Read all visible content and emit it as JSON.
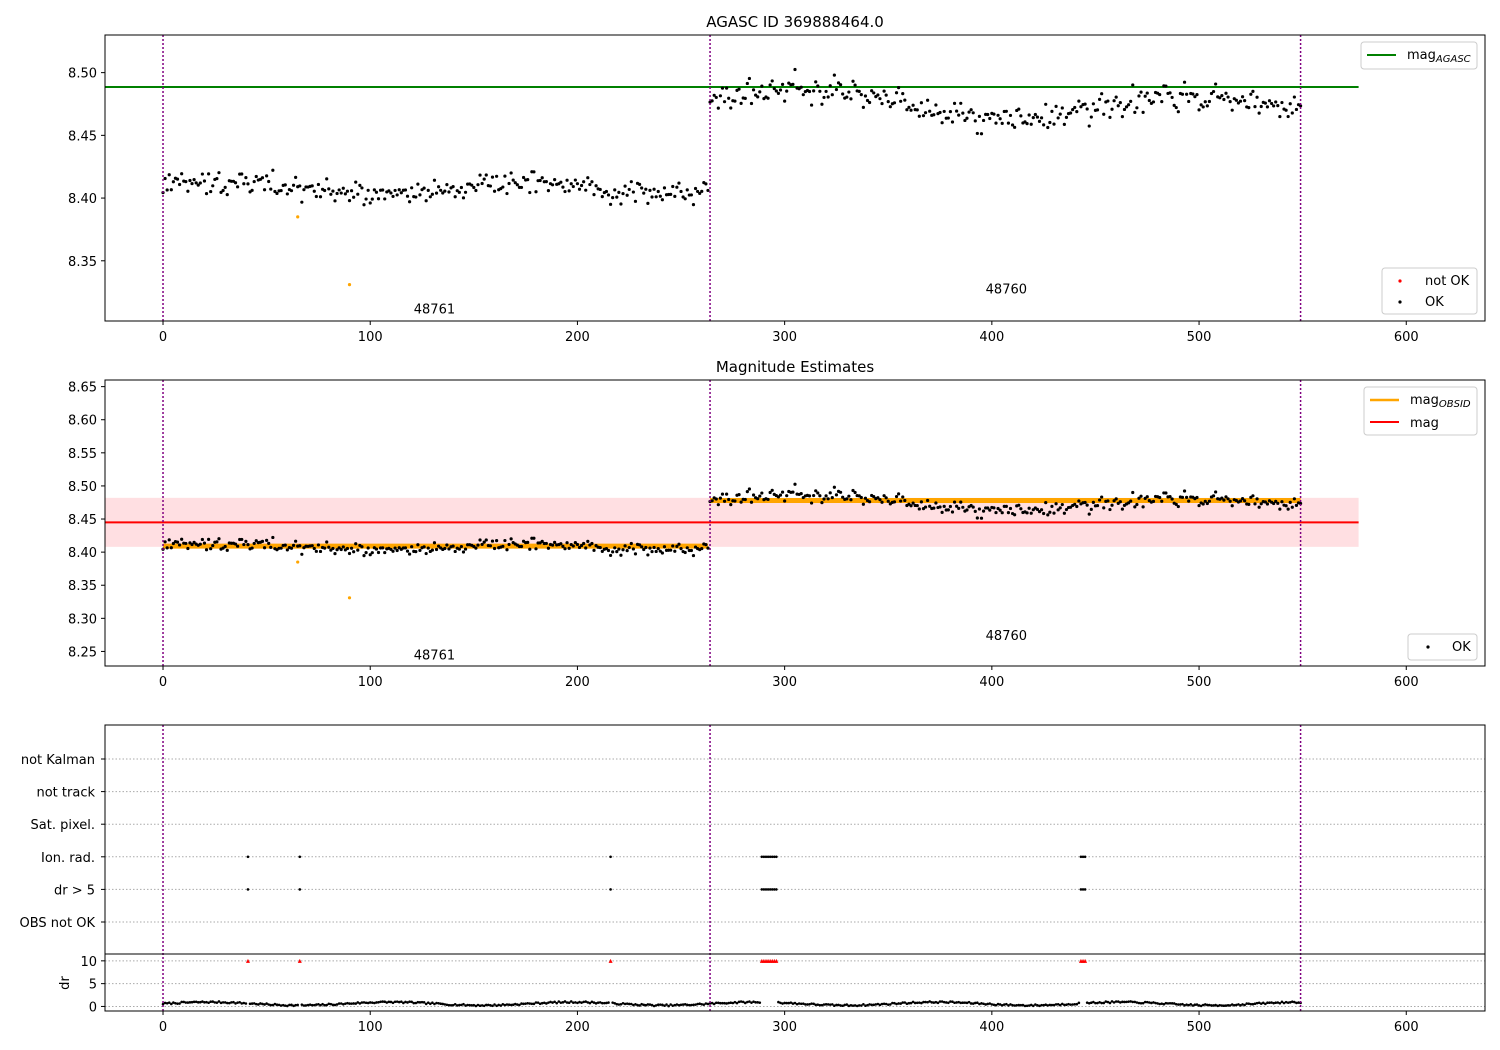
{
  "chart_data": [
    {
      "type": "scatter",
      "title": "AGASC ID 369888464.0",
      "xlim": [
        -28,
        638
      ],
      "ylim": [
        8.302,
        8.53
      ],
      "xticks": [
        0,
        100,
        200,
        300,
        400,
        500,
        600
      ],
      "yticks": [
        8.35,
        8.4,
        8.45,
        8.5
      ],
      "vlines": [
        0,
        264,
        549
      ],
      "obsid_labels": [
        {
          "text": "48761",
          "x": 131,
          "y": 8.312
        },
        {
          "text": "48760",
          "x": 407,
          "y": 8.328
        }
      ],
      "hlines": [
        {
          "name": "mag",
          "sub": "AGASC",
          "y": 8.4885,
          "color": "#008000"
        }
      ],
      "segments": [
        {
          "x0": 0,
          "x1": 263,
          "mean": 8.408,
          "amp": 0.008,
          "noise": 0.0045
        },
        {
          "x0": 264,
          "x1": 549,
          "mean": 8.478,
          "amp": 0.011,
          "noise": 0.0055
        }
      ],
      "outliers": [
        {
          "x": 65,
          "y": 8.385
        },
        {
          "x": 90,
          "y": 8.331
        }
      ],
      "legend_top": {
        "items": [
          {
            "label": "mag",
            "sub": "AGASC",
            "color": "#008000"
          }
        ],
        "loc": "upper right"
      },
      "legend_bottom": {
        "items": [
          {
            "label": "not OK",
            "color": "#ff0000"
          },
          {
            "label": "OK",
            "color": "#000000"
          }
        ],
        "loc": "lower right"
      }
    },
    {
      "type": "scatter",
      "title": "Magnitude Estimates",
      "xlim": [
        -28,
        638
      ],
      "ylim": [
        8.228,
        8.66
      ],
      "xticks": [
        0,
        100,
        200,
        300,
        400,
        500,
        600
      ],
      "yticks": [
        8.25,
        8.3,
        8.35,
        8.4,
        8.45,
        8.5,
        8.55,
        8.6,
        8.65
      ],
      "vlines": [
        0,
        264,
        549
      ],
      "obsid_labels": [
        {
          "text": "48761",
          "x": 131,
          "y": 8.245
        },
        {
          "text": "48760",
          "x": 407,
          "y": 8.275
        }
      ],
      "band": {
        "y0": 8.408,
        "y1": 8.482,
        "x1": 577,
        "color": "#ffdfe2"
      },
      "mag_line": {
        "name": "mag",
        "y": 8.445,
        "x1": 577,
        "color": "#ff0000"
      },
      "obsid_lines": [
        {
          "x0": 0,
          "x1": 263,
          "y": 8.409
        },
        {
          "x0": 264,
          "x1": 549,
          "y": 8.478
        }
      ],
      "legend_top": {
        "items": [
          {
            "label": "mag",
            "sub": "OBSID",
            "color": "#ffa500"
          },
          {
            "label": "mag",
            "color": "#ff0000"
          }
        ],
        "loc": "upper right"
      },
      "legend_bottom": {
        "items": [
          {
            "label": "OK",
            "color": "#000000"
          }
        ],
        "loc": "lower right"
      }
    },
    {
      "type": "scatter",
      "xlim": [
        -28,
        638
      ],
      "xticks": [
        0,
        100,
        200,
        300,
        400,
        500,
        600
      ],
      "flag_rows": [
        "not Kalman",
        "not track",
        "Sat. pixel.",
        "Ion. rad.",
        "dr > 5",
        "OBS not OK"
      ],
      "flag_points": {
        "Ion. rad.": [
          41,
          66,
          216,
          289,
          290,
          291,
          292,
          293,
          294,
          295,
          296,
          443,
          444,
          445
        ],
        "dr > 5": [
          41,
          66,
          216,
          289,
          290,
          291,
          292,
          293,
          294,
          295,
          296,
          443,
          444,
          445
        ]
      },
      "dr": {
        "ylabel": "dr",
        "yticks": [
          0,
          5,
          10
        ],
        "ylim": [
          -1,
          11.5
        ],
        "clip": 10,
        "clipped_x": [
          41,
          66,
          216,
          289,
          290,
          291,
          292,
          293,
          294,
          295,
          296,
          443,
          444,
          445
        ]
      }
    }
  ]
}
